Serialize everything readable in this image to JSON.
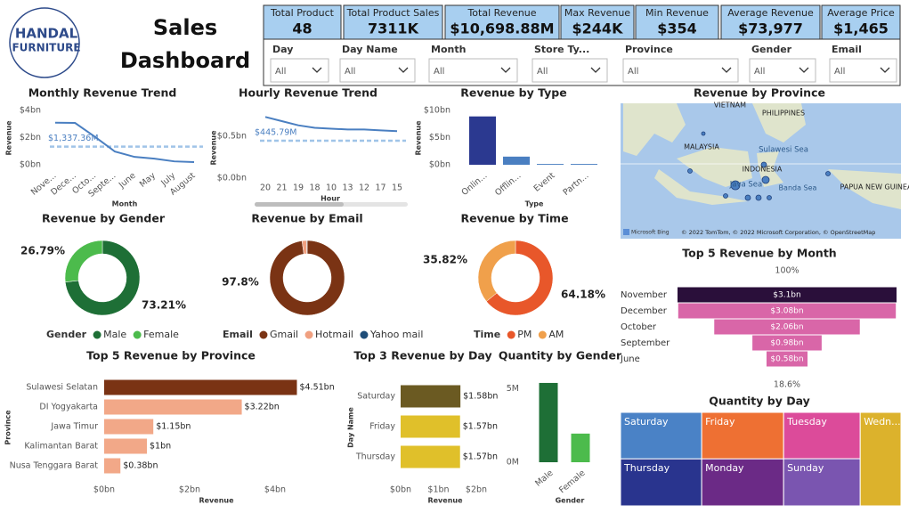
{
  "header": {
    "logo": {
      "brand": "HANDAL",
      "sub": "FURNITURE"
    },
    "title": "Sales Dashboard"
  },
  "kpis": [
    {
      "label": "Total Product",
      "value": "48"
    },
    {
      "label": "Total Product Sales",
      "value": "7311K"
    },
    {
      "label": "Total Revenue",
      "value": "$10,698.88M"
    },
    {
      "label": "Max Revenue",
      "value": "$244K"
    },
    {
      "label": "Min Revenue",
      "value": "$354"
    },
    {
      "label": "Average Revenue",
      "value": "$73,977"
    },
    {
      "label": "Average Price",
      "value": "$1,465"
    }
  ],
  "filters": [
    {
      "label": "Day",
      "value": "All"
    },
    {
      "label": "Day Name",
      "value": "All"
    },
    {
      "label": "Month",
      "value": "All"
    },
    {
      "label": "Store Ty...",
      "value": "All"
    },
    {
      "label": "Province",
      "value": "All"
    },
    {
      "label": "Gender",
      "value": "All"
    },
    {
      "label": "Email",
      "value": "All"
    }
  ],
  "chart_data": [
    {
      "type": "line",
      "title": "Monthly Revenue Trend",
      "x_label": "Month",
      "y_label": "Revenue",
      "categories": [
        "Nove...",
        "Dece...",
        "Octo...",
        "Septe...",
        "June",
        "May",
        "July",
        "August"
      ],
      "values": [
        3.1,
        3.08,
        2.06,
        0.98,
        0.58,
        0.45,
        0.25,
        0.2
      ],
      "color": "#4a7fc1",
      "average": 1.33736,
      "average_label": "$1,337.36M",
      "ylim": [
        0,
        4
      ],
      "yticks": [
        {
          "value": 0,
          "label": "$0bn"
        },
        {
          "value": 2,
          "label": "$2bn"
        },
        {
          "value": 4,
          "label": "$4bn"
        }
      ]
    },
    {
      "type": "line",
      "title": "Hourly Revenue Trend",
      "x_label": "Hour",
      "y_label": "Revenue",
      "categories": [
        "20",
        "21",
        "19",
        "18",
        "10",
        "13",
        "12",
        "17",
        "15"
      ],
      "values": [
        0.73,
        0.68,
        0.63,
        0.6,
        0.59,
        0.58,
        0.58,
        0.57,
        0.56
      ],
      "color": "#4a7fc1",
      "average": 0.44579,
      "average_label": "$445.79M",
      "ylim": [
        0,
        0.85
      ],
      "yticks": [
        {
          "value": 0,
          "label": "$0.0bn"
        },
        {
          "value": 0.5,
          "label": "$0.5bn"
        }
      ]
    },
    {
      "type": "bar",
      "title": "Revenue by Type",
      "x_label": "Type",
      "y_label": "Revenue",
      "categories": [
        "Onlin...",
        "Offlin...",
        "Event",
        "Partn..."
      ],
      "values": [
        8.9,
        1.5,
        0.15,
        0.15
      ],
      "colors": [
        "#2b3990",
        "#4a7fc1",
        "#4a7fc1",
        "#4a7fc1"
      ],
      "ylim": [
        0,
        10
      ],
      "yticks": [
        {
          "value": 0,
          "label": "$0bn"
        },
        {
          "value": 5,
          "label": "$5bn"
        },
        {
          "value": 10,
          "label": "$10bn"
        }
      ]
    },
    {
      "type": "map",
      "title": "Revenue by Province",
      "places": [
        "VIETNAM",
        "PHILIPPINES",
        "MALAYSIA",
        "Sulawesi Sea",
        "INDONESIA",
        "Java Sea",
        "Banda Sea",
        "PAPUA NEW GUINEA"
      ],
      "attribution": [
        "Microsoft Bing",
        "© 2022 TomTom, © 2022 Microsoft Corporation, © OpenStreetMap"
      ]
    },
    {
      "type": "donut",
      "title": "Revenue by Gender",
      "legend_title": "Gender",
      "categories": [
        "Male",
        "Female"
      ],
      "values": [
        73.21,
        26.79
      ],
      "value_labels": [
        "73.21%",
        "26.79%"
      ],
      "colors": [
        "#1e6f36",
        "#4cbb4c"
      ]
    },
    {
      "type": "donut",
      "title": "Revenue by Email",
      "legend_title": "Email",
      "categories": [
        "Gmail",
        "Hotmail",
        "Yahoo mail"
      ],
      "values": [
        97.8,
        2.0,
        0.2
      ],
      "value_labels": [
        "97.8%",
        null,
        null
      ],
      "colors": [
        "#7a3314",
        "#f0a080",
        "#1f4e79"
      ]
    },
    {
      "type": "donut",
      "title": "Revenue by Time",
      "legend_title": "Time",
      "categories": [
        "PM",
        "AM"
      ],
      "values": [
        64.18,
        35.82
      ],
      "value_labels": [
        "64.18%",
        "35.82%"
      ],
      "colors": [
        "#e8572a",
        "#f0a04b"
      ]
    },
    {
      "type": "funnel",
      "title": "Top 5 Revenue by Month",
      "categories": [
        "November",
        "December",
        "October",
        "September",
        "June"
      ],
      "values": [
        3.1,
        3.08,
        2.06,
        0.98,
        0.58
      ],
      "value_labels": [
        "$3.1bn",
        "$3.08bn",
        "$2.06bn",
        "$0.98bn",
        "$0.58bn"
      ],
      "colors": [
        "#2a0f3a",
        "#d966a8",
        "#d966a8",
        "#d966a8",
        "#d966a8"
      ],
      "top_label": "100%",
      "bottom_label": "18.6%"
    },
    {
      "type": "treemap",
      "title": "Quantity by Day",
      "categories": [
        "Saturday",
        "Friday",
        "Tuesday",
        "Wedn...",
        "Thursday",
        "Monday",
        "Sunday"
      ],
      "values": [
        1020,
        1030,
        960,
        1030,
        1030,
        1040,
        975
      ],
      "colors": [
        "#4a82c6",
        "#ee7033",
        "#dc4b9a",
        "#dcb22c",
        "#29348e",
        "#6b2a86",
        "#7a55b0"
      ]
    },
    {
      "type": "hbar",
      "title": "Top 5 Revenue by Province",
      "x_label": "Revenue",
      "y_label": "Province",
      "categories": [
        "Sulawesi Selatan",
        "DI Yogyakarta",
        "Jawa Timur",
        "Kalimantan Barat",
        "Nusa Tenggara Barat"
      ],
      "values": [
        4.51,
        3.22,
        1.15,
        1,
        0.38
      ],
      "value_labels": [
        "$4.51bn",
        "$3.22bn",
        "$1.15bn",
        "$1bn",
        "$0.38bn"
      ],
      "colors": [
        "#7a3314",
        "#f2a888",
        "#f2a888",
        "#f2a888",
        "#f2a888"
      ],
      "xlim": [
        0,
        4.7
      ],
      "xticks": [
        {
          "value": 0,
          "label": "$0bn"
        },
        {
          "value": 2,
          "label": "$2bn"
        },
        {
          "value": 4,
          "label": "$4bn"
        }
      ]
    },
    {
      "type": "hbar",
      "title": "Top 3 Revenue by Day",
      "x_label": "Revenue",
      "y_label": "Day Name",
      "categories": [
        "Saturday",
        "Friday",
        "Thursday"
      ],
      "values": [
        1.58,
        1.57,
        1.57
      ],
      "value_labels": [
        "$1.58bn",
        "$1.57bn",
        "$1.57bn"
      ],
      "colors": [
        "#6b5a22",
        "#e0c02a",
        "#e0c02a"
      ],
      "xlim": [
        0,
        2
      ],
      "xticks": [
        {
          "value": 0,
          "label": "$0bn"
        },
        {
          "value": 1,
          "label": "$1bn"
        },
        {
          "value": 2,
          "label": "$2bn"
        }
      ]
    },
    {
      "type": "bar",
      "title": "Quantity by Gender",
      "x_label": "Gender",
      "categories": [
        "Male",
        "Female"
      ],
      "values": [
        5.4,
        1.95
      ],
      "colors": [
        "#1e6f36",
        "#4cbb4c"
      ],
      "ylim": [
        0,
        5.7
      ],
      "yticks": [
        {
          "value": 0,
          "label": "0M"
        },
        {
          "value": 5,
          "label": "5M"
        }
      ]
    }
  ]
}
